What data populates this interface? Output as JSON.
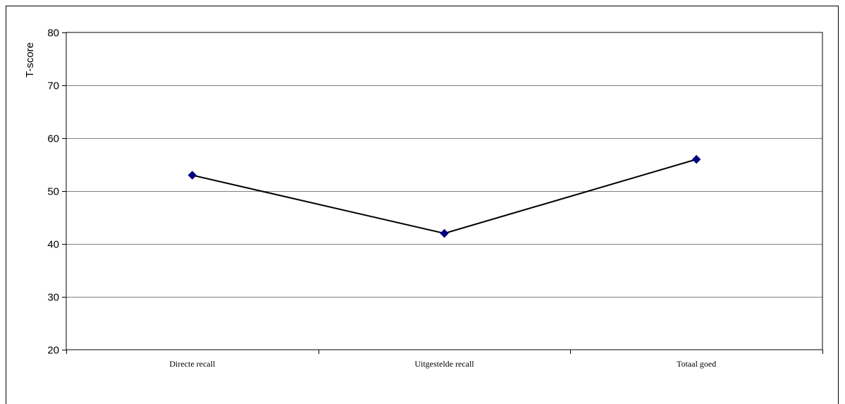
{
  "chart_data": {
    "type": "line",
    "categories": [
      "Directe recall",
      "Uitgestelde recall",
      "Totaal goed"
    ],
    "series": [
      {
        "values": [
          53,
          42,
          56
        ]
      }
    ],
    "ylabel": "T-score",
    "xlabel": "",
    "ylim": [
      20,
      80
    ],
    "yticks": [
      20,
      30,
      40,
      50,
      60,
      70,
      80
    ],
    "grid": "horizontal",
    "legend": "none",
    "colors": {
      "line": "#000000",
      "marker": "#000080",
      "grid": "#808080"
    }
  }
}
